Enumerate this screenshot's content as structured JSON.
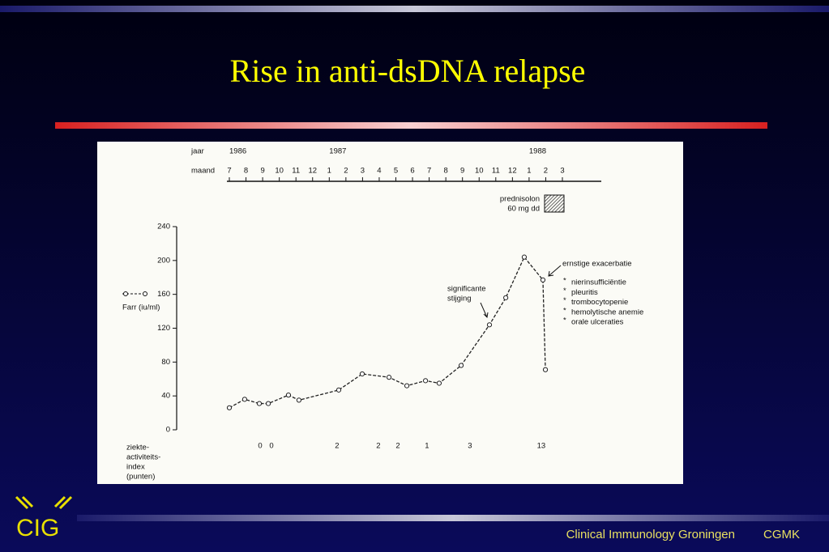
{
  "slide": {
    "title": "Rise in anti-dsDNA relapse",
    "logo": "CIG",
    "footer": [
      "Clinical Immunology Groningen",
      "CGMK"
    ]
  },
  "chart_data": {
    "type": "line",
    "year_axis_label": "jaar",
    "month_axis_label": "maand",
    "year_ticks": [
      {
        "value": 0,
        "label": "1986"
      },
      {
        "value": 6,
        "label": "1987"
      },
      {
        "value": 18,
        "label": "1988"
      }
    ],
    "xlim": [
      0,
      20
    ],
    "xticks": [
      {
        "value": 0,
        "label": "7"
      },
      {
        "value": 1,
        "label": "8"
      },
      {
        "value": 2,
        "label": "9"
      },
      {
        "value": 3,
        "label": "10"
      },
      {
        "value": 4,
        "label": "11"
      },
      {
        "value": 5,
        "label": "12"
      },
      {
        "value": 6,
        "label": "1"
      },
      {
        "value": 7,
        "label": "2"
      },
      {
        "value": 8,
        "label": "3"
      },
      {
        "value": 9,
        "label": "4"
      },
      {
        "value": 10,
        "label": "5"
      },
      {
        "value": 11,
        "label": "6"
      },
      {
        "value": 12,
        "label": "7"
      },
      {
        "value": 13,
        "label": "8"
      },
      {
        "value": 14,
        "label": "9"
      },
      {
        "value": 15,
        "label": "10"
      },
      {
        "value": 16,
        "label": "11"
      },
      {
        "value": 17,
        "label": "12"
      },
      {
        "value": 18,
        "label": "1"
      },
      {
        "value": 19,
        "label": "2"
      },
      {
        "value": 20,
        "label": "3"
      }
    ],
    "ylim": [
      0,
      240
    ],
    "yticks": [
      0,
      40,
      80,
      120,
      160,
      200,
      240
    ],
    "x": [
      0,
      0.92,
      1.8,
      2.34,
      3.55,
      4.18,
      6.57,
      7.98,
      9.59,
      10.66,
      11.78,
      12.6,
      13.92,
      15.62,
      16.6,
      17.71,
      18.83,
      18.98
    ],
    "series": [
      {
        "name": "Farr (iu/ml)",
        "color": "#222222",
        "values": [
          26,
          36,
          31,
          31,
          41,
          35,
          47,
          66,
          62,
          52,
          58,
          55,
          76,
          124,
          156,
          204,
          177,
          71
        ]
      }
    ],
    "treatment_legend": [
      "prednisolon",
      "60 mg dd"
    ],
    "annotations": {
      "rise": [
        "significante",
        "stijging"
      ],
      "exacerbation": "ernstige exacerbatie",
      "symptoms": [
        "nierinsufficiëntie",
        "pleuritis",
        "trombocytopenie",
        "hemolytische anemie",
        "orale ulceraties"
      ]
    },
    "activity_index": {
      "label": [
        "ziekte-",
        "activiteits-",
        "index",
        "(punten)"
      ],
      "x": [
        1.85,
        2.53,
        6.47,
        8.95,
        10.12,
        11.87,
        14.45,
        18.73
      ],
      "values": [
        0,
        0,
        2,
        2,
        2,
        1,
        3,
        13
      ]
    }
  }
}
